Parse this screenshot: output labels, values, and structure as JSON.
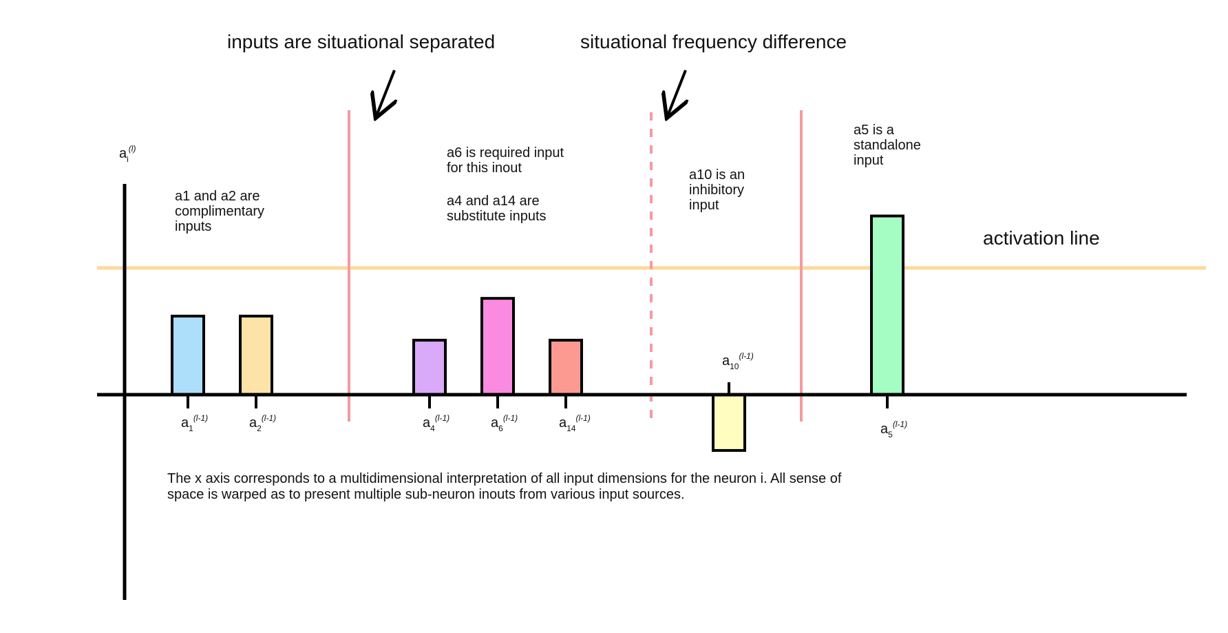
{
  "colors": {
    "activation_line": "#FFD89A",
    "separator": "#F59AA0",
    "axis": "#000000",
    "bar_a1": "#ADDEFA",
    "bar_a2": "#FDE3A8",
    "bar_a4": "#D9A9FA",
    "bar_a6": "#FB8BE1",
    "bar_a14": "#FC9A92",
    "bar_a10": "#FFFEC0",
    "bar_a5": "#A6FDC3"
  },
  "header_notes": {
    "separated": "inputs are situational separated",
    "frequency": "situational frequency difference"
  },
  "annotations": {
    "complementary": [
      "a1 and a2 are",
      "complimentary",
      "inputs"
    ],
    "required": [
      "a6 is required input",
      "for this inout"
    ],
    "substitute": [
      "a4 and a14 are",
      "substitute inputs"
    ],
    "inhibitory": [
      "a10 is an",
      "inhibitory",
      "input"
    ],
    "standalone": [
      "a5 is a",
      "standalone",
      "input"
    ],
    "activation_line": "activation line"
  },
  "y_axis_label": {
    "base": "a",
    "sub": "i",
    "sup": "(l)"
  },
  "bars": [
    {
      "id": "a1",
      "base": "a",
      "sub": "1",
      "sup": "(l-1)",
      "value": 0.62,
      "color": "#ADDEFA"
    },
    {
      "id": "a2",
      "base": "a",
      "sub": "2",
      "sup": "(l-1)",
      "value": 0.62,
      "color": "#FDE3A8"
    },
    {
      "id": "a4",
      "base": "a",
      "sub": "4",
      "sup": "(l-1)",
      "value": 0.43,
      "color": "#D9A9FA"
    },
    {
      "id": "a6",
      "base": "a",
      "sub": "6",
      "sup": "(l-1)",
      "value": 0.76,
      "color": "#FB8BE1"
    },
    {
      "id": "a14",
      "base": "a",
      "sub": "14",
      "sup": "(l-1)",
      "value": 0.43,
      "color": "#FC9A92"
    },
    {
      "id": "a10",
      "base": "a",
      "sub": "10",
      "sup": "(l-1)",
      "value": -0.44,
      "color": "#FFFEC0"
    },
    {
      "id": "a5",
      "base": "a",
      "sub": "5",
      "sup": "(l-1)",
      "value": 1.41,
      "color": "#A6FDC3"
    }
  ],
  "activation_threshold": 1.0,
  "footnote": "The x axis corresponds to a multidimensional interpretation of all input dimensions for the neuron i. All sense of space is warped as to present multiple sub-neuron inouts from various input sources."
}
